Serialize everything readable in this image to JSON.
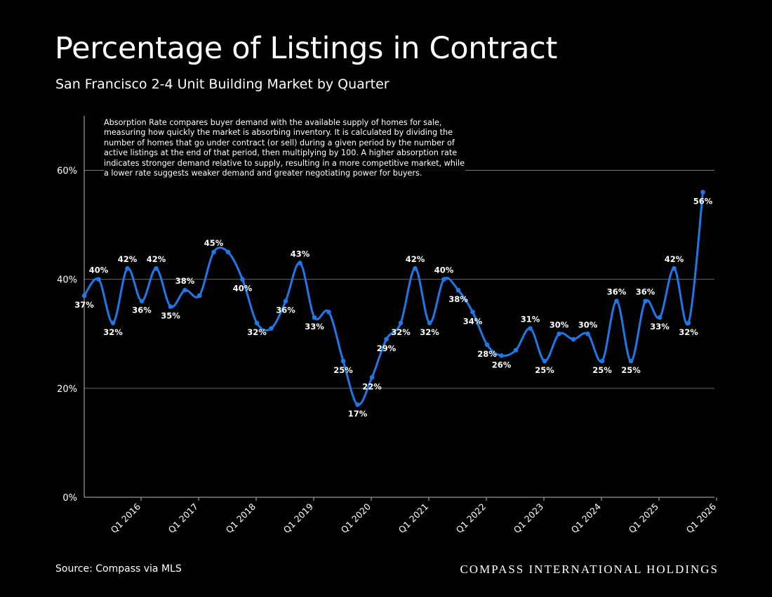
{
  "title": "Percentage of Listings in Contract",
  "subtitle": "San Francisco 2-4 Unit Building Market by Quarter",
  "annotation": "Absorption Rate compares buyer demand with the available supply of homes for sale, measuring how quickly the market is absorbing inventory. It is calculated by dividing the number of homes that go under contract (or sell) during a given period by the number of active listings at the end of that period, then multiplying by 100. A higher absorption rate indicates stronger demand relative to supply, resulting in a more competitive market, while a lower rate suggests weaker demand and greater negotiating power for buyers.",
  "source": "Source: Compass via MLS",
  "brand": "COMPASS INTERNATIONAL HOLDINGS",
  "colors": {
    "background": "#000000",
    "line": "#1f77e8",
    "grid": "#8a8a8a",
    "text": "#ffffff"
  },
  "chart_data": {
    "type": "line",
    "xlabel": "",
    "ylabel": "",
    "ylim": [
      0,
      70
    ],
    "yticks": [
      0,
      20,
      40,
      60
    ],
    "ytick_labels": [
      "0%",
      "20%",
      "40%",
      "60%"
    ],
    "grid": true,
    "legend": "none",
    "x_tick_labels": [
      "Q1 2016",
      "Q1 2017",
      "Q1 2018",
      "Q1 2019",
      "Q1 2020",
      "Q1 2021",
      "Q1 2022",
      "Q1 2023",
      "Q1 2024",
      "Q1 2025",
      "Q1 2026"
    ],
    "x_tick_positions": [
      4,
      8,
      12,
      16,
      20,
      24,
      28,
      32,
      36,
      40,
      44
    ],
    "series": [
      {
        "name": "",
        "values": [
          37,
          40,
          32,
          42,
          36,
          42,
          35,
          38,
          37,
          45,
          45,
          40,
          32,
          31,
          36,
          43,
          33,
          34,
          25,
          17,
          22,
          29,
          32,
          42,
          32,
          40,
          38,
          34,
          28,
          26,
          27,
          31,
          25,
          30,
          29,
          30,
          25,
          36,
          25,
          36,
          33,
          42,
          32,
          56
        ],
        "labels": [
          "37%",
          "40%",
          "32%",
          "42%",
          "36%",
          "42%",
          "35%",
          "38%",
          "",
          "45%",
          "",
          "40%",
          "32%",
          "",
          "36%",
          "43%",
          "33%",
          "",
          "25%",
          "17%",
          "22%",
          "29%",
          "32%",
          "42%",
          "32%",
          "40%",
          "38%",
          "34%",
          "28%",
          "26%",
          "",
          "31%",
          "25%",
          "30%",
          "",
          "30%",
          "25%",
          "36%",
          "25%",
          "36%",
          "33%",
          "42%",
          "32%",
          "56%"
        ]
      }
    ]
  }
}
